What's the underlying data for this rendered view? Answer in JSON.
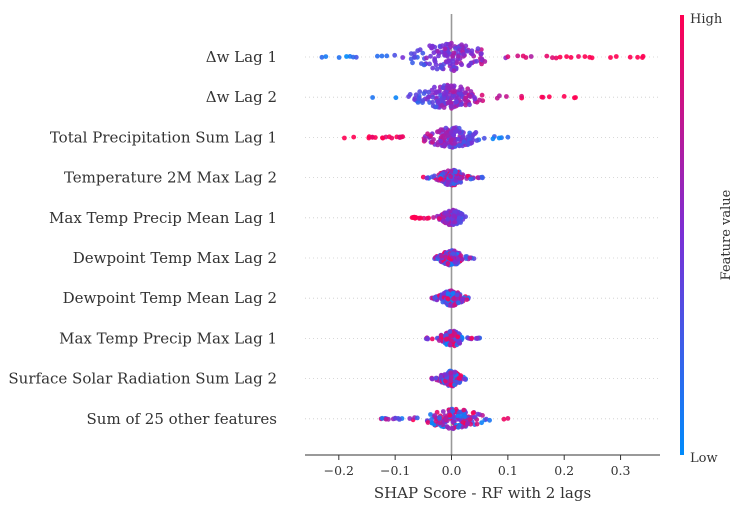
{
  "chart_data": {
    "type": "scatter",
    "subtype": "shap-beeswarm",
    "xlabel": "SHAP Score - RF with 2 lags",
    "xlim": [
      -0.26,
      0.37
    ],
    "xticks": [
      -0.2,
      -0.1,
      0.0,
      0.1,
      0.2,
      0.3
    ],
    "xtick_labels": [
      "−0.2",
      "−0.1",
      "0.0",
      "0.1",
      "0.2",
      "0.3"
    ],
    "colorbar": {
      "label": "Feature value",
      "high_label": "High",
      "low_label": "Low",
      "high_color": "#ff0052",
      "mid_color": "#7a2fd6",
      "low_color": "#008bfb"
    },
    "features": [
      {
        "name": "Δw Lag 1",
        "min": -0.23,
        "max": 0.34,
        "core": [
          -0.04,
          0.03
        ],
        "spread": 0.07,
        "trend": "pos"
      },
      {
        "name": "Δw Lag 2",
        "min": -0.14,
        "max": 0.22,
        "core": [
          -0.035,
          0.02
        ],
        "spread": 0.06,
        "trend": "pos"
      },
      {
        "name": "Total Precipitation Sum Lag 1",
        "min": -0.19,
        "max": 0.1,
        "core": [
          -0.01,
          0.01
        ],
        "spread": 0.05,
        "trend": "neg"
      },
      {
        "name": "Temperature 2M Max Lag 2",
        "min": -0.05,
        "max": 0.055,
        "core": [
          -0.012,
          0.012
        ],
        "spread": 0.025,
        "trend": "mix"
      },
      {
        "name": "Max Temp Precip Mean Lag 1",
        "min": -0.07,
        "max": 0.025,
        "core": [
          -0.005,
          0.008
        ],
        "spread": 0.02,
        "trend": "neg"
      },
      {
        "name": "Dewpoint Temp Max Lag 2",
        "min": -0.03,
        "max": 0.04,
        "core": [
          -0.01,
          0.01
        ],
        "spread": 0.02,
        "trend": "mix"
      },
      {
        "name": "Dewpoint Temp Mean Lag 2",
        "min": -0.035,
        "max": 0.03,
        "core": [
          -0.01,
          0.01
        ],
        "spread": 0.02,
        "trend": "mix"
      },
      {
        "name": "Max Temp Precip Max Lag 1",
        "min": -0.045,
        "max": 0.05,
        "core": [
          -0.008,
          0.01
        ],
        "spread": 0.02,
        "trend": "mix"
      },
      {
        "name": "Surface Solar Radiation Sum Lag 2",
        "min": -0.035,
        "max": 0.025,
        "core": [
          -0.01,
          0.008
        ],
        "spread": 0.018,
        "trend": "mix"
      },
      {
        "name": "Sum of 25 other features",
        "min": -0.125,
        "max": 0.1,
        "core": [
          -0.02,
          0.03
        ],
        "spread": 0.05,
        "trend": "mix"
      }
    ]
  }
}
